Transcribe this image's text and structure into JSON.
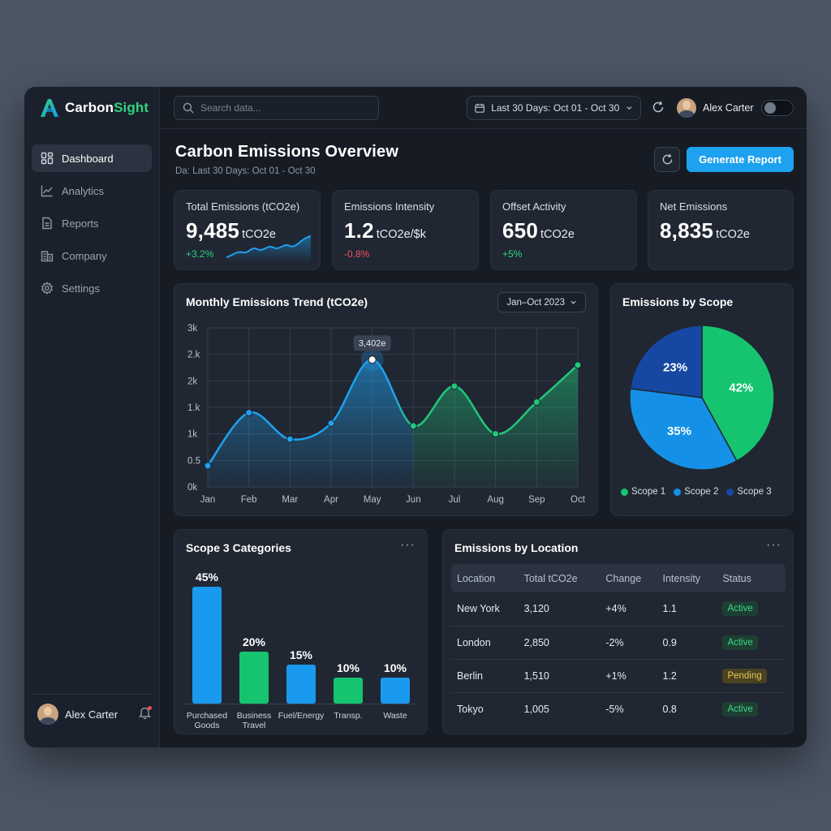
{
  "app": {
    "name_prefix": "Carbon",
    "name_suffix": "Sight"
  },
  "sidebar": {
    "items": [
      {
        "label": "Dashboard",
        "icon": "dashboard-icon",
        "active": true
      },
      {
        "label": "Analytics",
        "icon": "analytics-icon",
        "active": false
      },
      {
        "label": "Reports",
        "icon": "reports-icon",
        "active": false
      },
      {
        "label": "Company",
        "icon": "company-icon",
        "active": false
      },
      {
        "label": "Settings",
        "icon": "settings-icon",
        "active": false
      }
    ],
    "user": {
      "name": "Alex Carter"
    }
  },
  "topbar": {
    "search_placeholder": "Search data...",
    "date_range": "Last 30 Days: Oct 01 - Oct 30",
    "user_name": "Alex Carter"
  },
  "header": {
    "title": "Carbon Emissions Overview",
    "subtitle": "Da: Last 30 Days: Oct 01 - Oct 30",
    "generate_label": "Generate Report"
  },
  "kpis": [
    {
      "label": "Total Emissions (tCO2e)",
      "value": "9,485",
      "unit": "tCO2e",
      "change": "+3.2%",
      "trend": "pos"
    },
    {
      "label": "Emissions Intensity",
      "value": "1.2",
      "unit": "tCO2e/$k",
      "change": "-0.8%",
      "trend": "neg"
    },
    {
      "label": "Offset Activity",
      "value": "650",
      "unit": "tCO2e",
      "change": "+5%",
      "trend": "pos"
    },
    {
      "label": "Net Emissions",
      "value": "8,835",
      "unit": "tCO2e",
      "change": "",
      "trend": ""
    }
  ],
  "colors": {
    "accent_blue": "#1ea1ef",
    "accent_green": "#21c77a",
    "scope1": "#16c46f",
    "scope2": "#1491e6",
    "scope3": "#1647a3"
  },
  "trend_chart": {
    "title": "Monthly Emissions Trend (tCO2e)",
    "range_label": "Jan–Oct 2023",
    "tooltip": "3,402e"
  },
  "chart_data": [
    {
      "type": "area",
      "title": "Monthly Emissions Trend (tCO2e)",
      "categories": [
        "Jan",
        "Feb",
        "Mar",
        "Apr",
        "May",
        "Jun",
        "Jul",
        "Aug",
        "Sep",
        "Oct"
      ],
      "values": [
        0.4,
        1.4,
        0.9,
        1.2,
        2.4,
        1.15,
        1.9,
        1.0,
        1.6,
        2.3
      ],
      "y_ticks": [
        "0k",
        "0.5",
        "1k",
        "1.k",
        "2k",
        "2.k",
        "3k"
      ],
      "ylim": [
        0,
        3
      ],
      "grid": true
    },
    {
      "type": "pie",
      "title": "Emissions by Scope",
      "labels": [
        "Scope 1",
        "Scope 2",
        "Scope 3"
      ],
      "values": [
        42,
        35,
        23
      ],
      "display": [
        "42%",
        "35%",
        "23%"
      ],
      "legend": "bottom"
    },
    {
      "type": "bar",
      "title": "Scope 3 Categories",
      "categories": [
        [
          "Purchased",
          "Goods"
        ],
        [
          "Business",
          "Travel"
        ],
        [
          "Fuel/Energy"
        ],
        [
          "Transp."
        ],
        [
          "Waste"
        ]
      ],
      "values": [
        45,
        20,
        15,
        10,
        10
      ],
      "display": [
        "45%",
        "20%",
        "15%",
        "10%",
        "10%"
      ],
      "colors": [
        "#1a9aef",
        "#16c46f",
        "#1a9aef",
        "#16c46f",
        "#1a9aef"
      ]
    }
  ],
  "scope_chart": {
    "title": "Emissions by Scope"
  },
  "scope3": {
    "title": "Scope 3 Categories",
    "more": "···"
  },
  "location": {
    "title": "Emissions by Location",
    "more": "···",
    "headers": [
      "Location",
      "Total tCO2e",
      "Change",
      "Intensity",
      "Status"
    ],
    "rows": [
      {
        "location": "New York",
        "total": "3,120",
        "change": "+4%",
        "intensity": "1.1",
        "status": "Active"
      },
      {
        "location": "London",
        "total": "2,850",
        "change": "-2%",
        "intensity": "0.9",
        "status": "Active"
      },
      {
        "location": "Berlin",
        "total": "1,510",
        "change": "+1%",
        "intensity": "1.2",
        "status": "Pending"
      },
      {
        "location": "Tokyo",
        "total": "1,005",
        "change": "-5%",
        "intensity": "0.8",
        "status": "Active"
      }
    ]
  }
}
